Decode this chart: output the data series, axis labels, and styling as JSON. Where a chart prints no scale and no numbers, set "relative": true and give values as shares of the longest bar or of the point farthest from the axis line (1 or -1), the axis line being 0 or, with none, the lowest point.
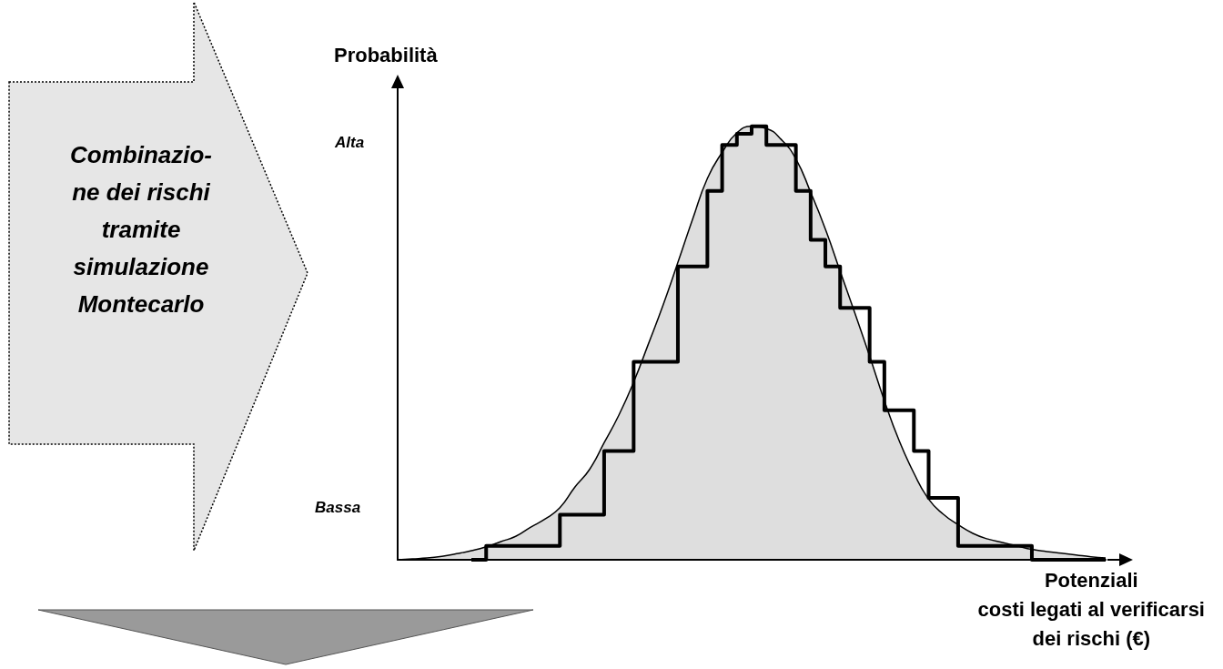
{
  "chart_data": {
    "type": "step",
    "relative": true,
    "ylabel": "Probabilità",
    "xlabel": "Potenziali\ncosti legati al verificarsi\ndei rischi (€)",
    "grid": false,
    "marker": "none",
    "annotations": [
      "Alta",
      "Bassa",
      "Combinazio-\nne dei rischi\ntramite\nsimulazione\nMontecarlo"
    ],
    "categories": [
      null,
      null,
      null,
      null,
      null,
      null,
      null,
      null,
      null,
      null,
      null,
      null,
      null,
      null,
      null,
      null,
      null,
      null,
      null,
      null,
      null,
      null,
      null,
      null,
      null,
      null,
      null,
      null,
      null,
      null,
      null,
      null,
      null,
      null,
      null,
      null,
      null,
      null,
      null,
      null,
      null,
      null,
      null,
      null,
      null,
      null,
      null,
      null,
      null
    ],
    "series": [
      {
        "type": "area",
        "color": "#000000",
        "values": [
          0,
          0.002,
          0.004,
          0.008,
          0.014,
          0.021,
          0.03,
          0.042,
          0.054,
          0.075,
          0.094,
          0.12,
          0.167,
          0.208,
          0.27,
          0.334,
          0.41,
          0.498,
          0.588,
          0.686,
          0.786,
          0.88,
          0.94,
          0.985,
          1,
          0.995,
          0.97,
          0.925,
          0.848,
          0.763,
          0.666,
          0.569,
          0.47,
          0.367,
          0.275,
          0.2,
          0.14,
          0.105,
          0.081,
          0.061,
          0.048,
          0.04,
          0.032,
          0.024,
          0.019,
          0.015,
          0.011,
          0.007,
          0.004
        ]
      },
      {
        "color": "#000000",
        "values": [
          null,
          null,
          null,
          null,
          null,
          0,
          0.032,
          0.032,
          0.032,
          0.032,
          0.032,
          0.104,
          0.104,
          0.104,
          0.251,
          0.251,
          0.457,
          0.457,
          0.457,
          0.677,
          0.677,
          0.851,
          0.957,
          0.983,
          1,
          0.957,
          0.957,
          0.851,
          0.738,
          0.677,
          0.581,
          0.581,
          0.457,
          0.345,
          0.345,
          0.251,
          0.143,
          0.143,
          0.032,
          0.032,
          0.032,
          0.032,
          0.032,
          0,
          0,
          0,
          0,
          0,
          0
        ]
      }
    ]
  }
}
